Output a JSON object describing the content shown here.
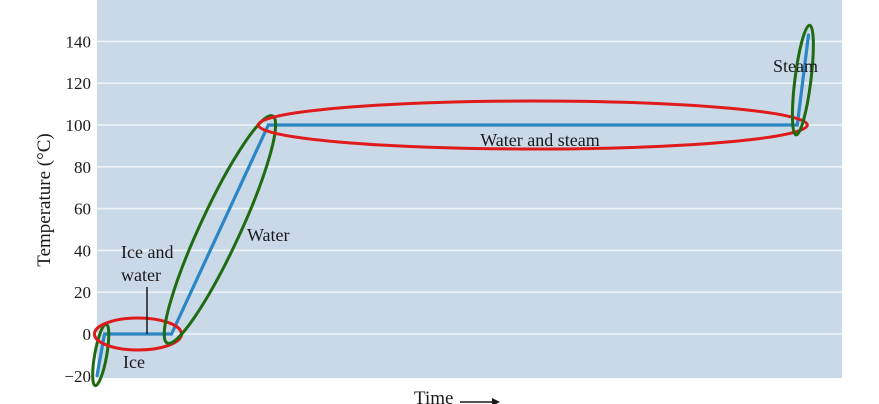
{
  "chart_data": {
    "type": "line",
    "title": "",
    "ylabel": "Temperature (°C)",
    "xlabel": "Time",
    "ylim": [
      -20,
      160
    ],
    "yticks": [
      -20,
      0,
      20,
      40,
      60,
      80,
      100,
      120,
      140
    ],
    "ytick_labels": [
      "−20",
      "0",
      "20",
      "40",
      "60",
      "80",
      "100",
      "120",
      "140"
    ],
    "grid": true,
    "colors": {
      "plot_background": "#c9d9e8",
      "grid": "#eef3f8",
      "curve": "#2b86c5",
      "phase_ellipse": "#e01b1b",
      "single_phase_ellipse": "#1f6b12"
    },
    "series": [
      {
        "values": [
          {
            "x": 0.0,
            "y": -20
          },
          {
            "x": 1.0,
            "y": 0
          },
          {
            "x": 10.0,
            "y": 0
          },
          {
            "x": 23.0,
            "y": 100
          },
          {
            "x": 94.0,
            "y": 100
          },
          {
            "x": 95.5,
            "y": 143
          }
        ]
      }
    ],
    "annotations": [
      {
        "text": "Ice"
      },
      {
        "text": "Ice and"
      },
      {
        "text": "water"
      },
      {
        "text": "Water"
      },
      {
        "text": "Water and steam"
      },
      {
        "text": "Steam"
      }
    ]
  }
}
